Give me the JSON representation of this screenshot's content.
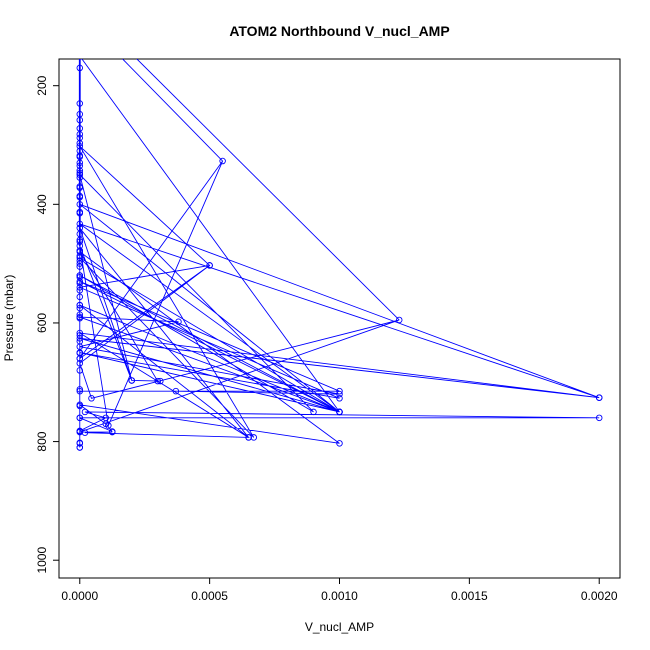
{
  "chart_data": {
    "type": "line",
    "title": "ATOM2 Northbound V_nucl_AMP",
    "xlabel": "V_nucl_AMP",
    "ylabel": "Pressure (mbar)",
    "xlim": [
      -8e-05,
      0.00208
    ],
    "ylim": [
      1030,
      155
    ],
    "y_reversed": true,
    "x_ticks": [
      0,
      0.0005,
      0.001,
      0.0015,
      0.002
    ],
    "x_tick_labels": [
      "0.0000",
      "0.0005",
      "0.0010",
      "0.0015",
      "0.0020"
    ],
    "y_ticks": [
      200,
      400,
      600,
      800,
      1000
    ],
    "y_tick_labels": [
      "200",
      "400",
      "600",
      "800",
      "1000"
    ],
    "grid": false,
    "series_color": "#0000ff",
    "series": [
      {
        "points": [
          [
            0,
            810
          ],
          [
            0,
            802
          ],
          [
            0,
            782
          ],
          [
            0.0001,
            760
          ],
          [
            2e-05,
            750
          ],
          [
            0.002,
            760
          ],
          [
            0,
            760
          ],
          [
            0.000125,
            783
          ],
          [
            0.0001,
            770
          ],
          [
            0,
            738
          ],
          [
            0.001,
            803
          ],
          [
            0,
            480
          ],
          [
            0.0003,
            698
          ],
          [
            0.00031,
            698
          ],
          [
            0.0002,
            697
          ],
          [
            0,
            440
          ],
          [
            0.00065,
            793
          ],
          [
            0,
            617
          ],
          [
            0.002,
            726
          ],
          [
            0,
            626
          ],
          [
            0.001,
            750
          ],
          [
            0,
            650
          ],
          [
            0.001,
            727
          ],
          [
            0,
            540
          ],
          [
            0.0005,
            503
          ],
          [
            0,
            668
          ],
          [
            4.5e-05,
            727
          ],
          [
            0.00123,
            595
          ],
          [
            0,
            784
          ],
          [
            0.000125,
            784
          ],
          [
            2e-05,
            785
          ],
          [
            0.00065,
            793
          ],
          [
            0,
            570
          ],
          [
            0.001,
            750
          ],
          [
            0,
            530
          ],
          [
            0.001,
            715
          ],
          [
            0,
            715
          ],
          [
            0.00037,
            715
          ],
          [
            0.001,
            720
          ],
          [
            0,
            640
          ],
          [
            0.00038,
            598
          ],
          [
            0,
            590
          ],
          [
            0.001,
            750
          ],
          [
            0,
            490
          ],
          [
            0.00067,
            793
          ],
          [
            0,
            302
          ],
          [
            0.0005,
            503
          ],
          [
            0,
            660
          ],
          [
            0.00055,
            327
          ],
          [
            0.00011,
            773
          ],
          [
            0,
            470
          ],
          [
            0.0002,
            697
          ],
          [
            0,
            350
          ],
          [
            0.0009,
            750
          ],
          [
            0,
            520
          ],
          [
            0.001,
            750
          ],
          [
            0,
            433
          ],
          [
            0.002,
            726
          ],
          [
            0,
            400
          ],
          [
            0.001,
            750
          ],
          [
            0,
            150
          ],
          [
            0,
            450
          ],
          [
            0,
            170
          ],
          [
            0,
            230
          ],
          [
            0,
            248
          ],
          [
            0,
            258
          ],
          [
            0,
            272
          ],
          [
            0,
            282
          ],
          [
            0,
            288
          ],
          [
            0,
            297
          ],
          [
            0,
            310
          ],
          [
            0,
            318
          ],
          [
            0,
            320
          ],
          [
            0,
            330
          ],
          [
            0,
            335
          ],
          [
            0,
            343
          ],
          [
            0,
            347
          ],
          [
            0,
            355
          ],
          [
            0,
            370
          ],
          [
            0,
            372
          ],
          [
            0,
            386
          ],
          [
            0,
            388
          ],
          [
            0,
            413
          ],
          [
            0,
            415
          ],
          [
            0,
            460
          ],
          [
            0,
            463
          ],
          [
            0,
            478
          ],
          [
            0,
            487
          ],
          [
            0,
            495
          ],
          [
            0,
            500
          ],
          [
            0,
            505
          ],
          [
            0,
            520
          ],
          [
            0,
            523
          ],
          [
            0,
            533
          ],
          [
            0,
            545
          ],
          [
            0,
            556
          ],
          [
            0,
            570
          ],
          [
            0,
            575
          ],
          [
            0,
            586
          ],
          [
            0,
            592
          ],
          [
            0,
            621
          ],
          [
            0,
            631
          ],
          [
            0,
            651
          ],
          [
            0,
            660
          ],
          [
            0,
            680
          ],
          [
            0,
            712
          ],
          [
            0,
            740
          ],
          [
            0,
            760
          ],
          [
            0,
            783
          ],
          [
            0,
            803
          ],
          [
            0,
            810
          ]
        ]
      }
    ],
    "extra_segments": [
      [
        [
          0.00022,
          155
        ],
        [
          0.00123,
          595
        ]
      ],
      [
        [
          0.000165,
          155
        ],
        [
          0.00055,
          327
        ]
      ]
    ]
  }
}
